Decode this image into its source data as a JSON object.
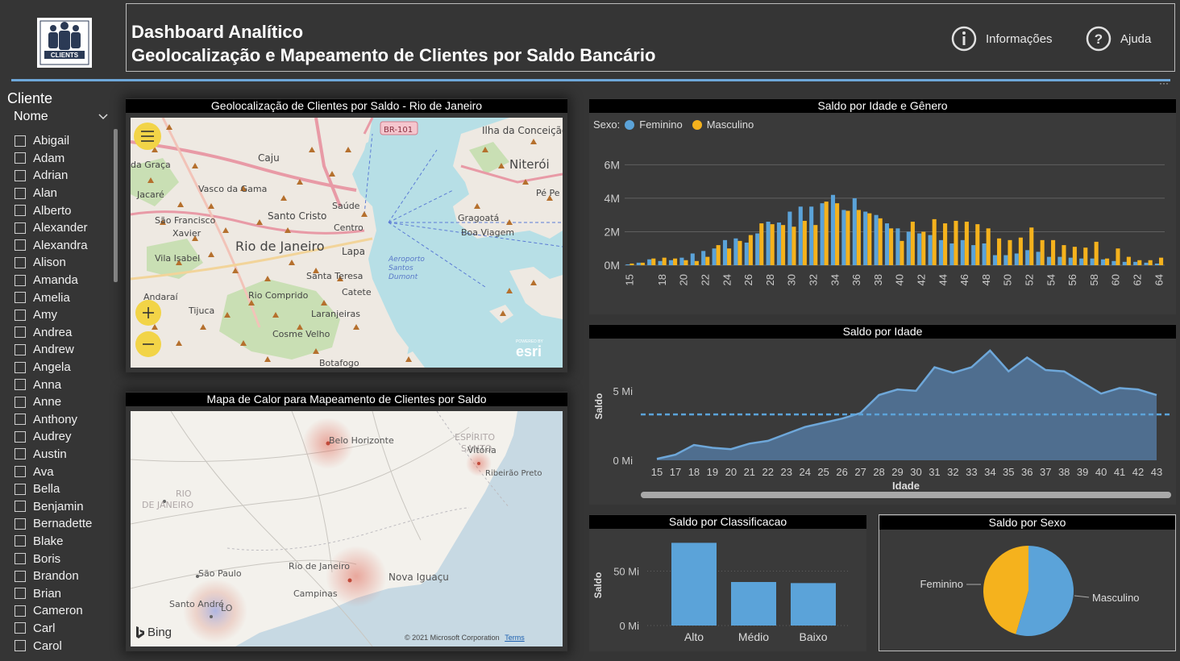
{
  "logo": {
    "text": "CLIENTS"
  },
  "header": {
    "title_line1": "Dashboard Analítico",
    "title_line2": "Geolocalização e Mapeamento de Clientes por Saldo Bancário",
    "info_label": "Informações",
    "help_label": "Ajuda"
  },
  "slicer": {
    "title": "Cliente",
    "field": "Nome",
    "items": [
      "Abigail",
      "Adam",
      "Adrian",
      "Alan",
      "Alberto",
      "Alexander",
      "Alexandra",
      "Alison",
      "Amanda",
      "Amelia",
      "Amy",
      "Andrea",
      "Andrew",
      "Angela",
      "Anna",
      "Anne",
      "Anthony",
      "Audrey",
      "Austin",
      "Ava",
      "Bella",
      "Benjamin",
      "Bernadette",
      "Blake",
      "Boris",
      "Brandon",
      "Brian",
      "Cameron",
      "Carl",
      "Carol"
    ]
  },
  "map_rio": {
    "title": "Geolocalização de Clientes por Saldo - Rio de Janeiro",
    "labels": [
      "BR-101",
      "Ilha da Conceição",
      "Caju",
      "Niterói",
      "da Graça",
      "Vasco da Gama",
      "Pé Pe",
      "Jacaré",
      "Saúde",
      "São Francisco",
      "Santo Cristo",
      "Gragoatá",
      "Xavier",
      "Centro",
      "Boa Viagem",
      "Rio de Janeiro",
      "Lapa",
      "Vila Isabel",
      "Aeroporto Santos Dumont",
      "Santa Teresa",
      "Catete",
      "Andaraí",
      "Rio Comprido",
      "Tijuca",
      "Laranjeiras",
      "Cosme Velho",
      "Botafogo"
    ],
    "attribution": "esri",
    "powered": "POWERED BY"
  },
  "heatmap": {
    "title": "Mapa de Calor para Mapeamento de Clientes por Saldo",
    "labels": [
      "Belo Horizonte",
      "ESPÍRITO SANTO",
      "Vitória",
      "Ribeirão Preto",
      "RIO DE JANEIRO",
      "Nova Iguaçu",
      "Rio de Janeiro",
      "Campinas",
      "São Paulo",
      "Santo André",
      "LO"
    ],
    "bing": "Bing",
    "copyright": "© 2021 Microsoft Corporation",
    "terms": "Terms"
  },
  "colors": {
    "feminino": "#5ba3d9",
    "masculino": "#f5b21d",
    "accent": "#6ea7d9",
    "area": "#4f6e8f"
  },
  "chart_data": [
    {
      "type": "bar",
      "title": "Saldo por Idade e Gênero",
      "legend_title": "Sexo:",
      "legend_position": "top-left",
      "categories": [
        15,
        16,
        17,
        18,
        19,
        20,
        21,
        22,
        23,
        24,
        25,
        26,
        27,
        28,
        29,
        30,
        31,
        32,
        33,
        34,
        35,
        36,
        37,
        38,
        39,
        40,
        41,
        42,
        43,
        44,
        45,
        46,
        47,
        48,
        49,
        50,
        51,
        52,
        53,
        54,
        55,
        56,
        57,
        58,
        59,
        60,
        61,
        62,
        63,
        64
      ],
      "tick_labels": [
        "15",
        "18",
        "20",
        "22",
        "24",
        "26",
        "28",
        "30",
        "32",
        "34",
        "36",
        "38",
        "40",
        "42",
        "44",
        "46",
        "48",
        "50",
        "52",
        "54",
        "56",
        "58",
        "60",
        "62",
        "64"
      ],
      "yticks": [
        "0M",
        "2M",
        "4M",
        "6M"
      ],
      "ylim": [
        0,
        6.5
      ],
      "series": [
        {
          "name": "Feminino",
          "values": [
            0.05,
            0.15,
            0.35,
            0.25,
            0.3,
            0.45,
            0.7,
            0.85,
            1.0,
            1.5,
            1.6,
            1.35,
            1.9,
            2.6,
            2.55,
            3.2,
            3.5,
            3.5,
            3.7,
            4.2,
            3.3,
            4.0,
            3.2,
            3.0,
            2.5,
            2.2,
            2.0,
            1.9,
            1.8,
            1.5,
            1.3,
            1.5,
            1.2,
            1.3,
            0.6,
            0.6,
            0.7,
            0.9,
            0.8,
            0.5,
            0.5,
            0.45,
            0.4,
            0.4,
            0.35,
            0.25,
            0.2,
            0.2,
            0.15,
            0.1
          ]
        },
        {
          "name": "Masculino",
          "values": [
            0.1,
            0.15,
            0.4,
            0.45,
            0.4,
            0.3,
            0.25,
            0.5,
            1.2,
            1.0,
            1.45,
            1.8,
            2.5,
            2.45,
            2.4,
            2.3,
            2.65,
            2.4,
            3.8,
            3.7,
            3.25,
            3.3,
            3.1,
            2.8,
            2.2,
            1.45,
            2.6,
            2.0,
            2.75,
            2.5,
            2.65,
            2.6,
            2.45,
            2.2,
            1.6,
            1.5,
            1.65,
            2.25,
            1.5,
            1.5,
            1.2,
            1.1,
            1.05,
            1.4,
            0.4,
            1.0,
            0.5,
            0.3,
            0.3,
            0.45
          ]
        }
      ]
    },
    {
      "type": "area",
      "title": "Saldo por Idade",
      "xlabel": "Idade",
      "ylabel": "Saldo",
      "categories": [
        "15",
        "17",
        "18",
        "19",
        "20",
        "21",
        "22",
        "23",
        "24",
        "25",
        "26",
        "27",
        "28",
        "29",
        "30",
        "31",
        "32",
        "33",
        "34",
        "35",
        "36",
        "37",
        "38",
        "39",
        "40",
        "41",
        "42",
        "43"
      ],
      "values": [
        0.1,
        0.4,
        1.1,
        0.9,
        0.8,
        1.2,
        1.4,
        1.9,
        2.4,
        2.7,
        3.0,
        3.4,
        4.7,
        5.1,
        5.0,
        6.7,
        6.3,
        6.7,
        7.9,
        6.4,
        7.4,
        6.5,
        6.4,
        5.6,
        4.8,
        5.2,
        5.1,
        4.7
      ],
      "reference_line": 3.3,
      "yticks": [
        "0 Mi",
        "5 Mi"
      ],
      "ylim": [
        0,
        8.3
      ]
    },
    {
      "type": "bar",
      "title": "Saldo por Classificacao",
      "ylabel": "Saldo",
      "categories": [
        "Alto",
        "Médio",
        "Baixo"
      ],
      "values": [
        76,
        40,
        39
      ],
      "yticks": [
        "0 Mi",
        "50 Mi"
      ],
      "ylim": [
        0,
        80
      ]
    },
    {
      "type": "pie",
      "title": "Saldo por Sexo",
      "categories": [
        "Feminino",
        "Masculino"
      ],
      "values": [
        45.5,
        54.5
      ]
    }
  ]
}
